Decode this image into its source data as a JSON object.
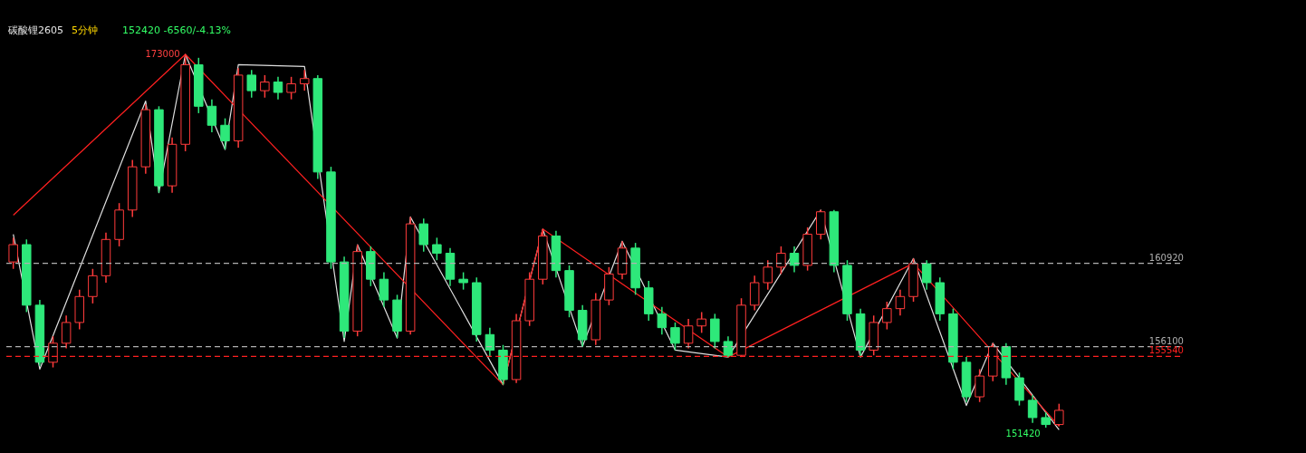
{
  "chart_data": {
    "type": "candlestick",
    "title": "碳酸锂2605",
    "subtitle": "5分钟",
    "tick_labels": false,
    "categories": [
      null,
      null,
      null,
      null,
      null,
      null,
      null,
      null,
      null,
      null,
      null,
      null,
      null,
      null,
      null,
      null,
      null,
      null,
      null,
      null,
      null,
      null,
      null,
      null,
      null,
      null,
      null,
      null,
      null,
      null,
      null,
      null,
      null,
      null,
      null,
      null,
      null,
      null,
      null,
      null,
      null,
      null,
      null,
      null,
      null,
      null,
      null,
      null,
      null,
      null,
      null,
      null,
      null,
      null,
      null,
      null,
      null,
      null,
      null,
      null,
      null,
      null,
      null,
      null,
      null,
      null,
      null,
      null,
      null,
      null,
      null,
      null,
      null,
      null,
      null,
      null,
      null,
      null,
      null,
      null
    ],
    "ohlc": [
      [
        161000,
        162400,
        160600,
        162000
      ],
      [
        162000,
        162300,
        158100,
        158500
      ],
      [
        158500,
        158800,
        155000,
        155200
      ],
      [
        155200,
        156700,
        154900,
        156300
      ],
      [
        156300,
        157900,
        156000,
        157500
      ],
      [
        157500,
        159400,
        157100,
        159000
      ],
      [
        159000,
        160600,
        158600,
        160200
      ],
      [
        160200,
        162700,
        159800,
        162300
      ],
      [
        162300,
        164400,
        161900,
        164000
      ],
      [
        164000,
        166900,
        163600,
        166500
      ],
      [
        166500,
        170100,
        166100,
        169800
      ],
      [
        169800,
        170000,
        165000,
        165400
      ],
      [
        165400,
        168200,
        165000,
        167800
      ],
      [
        167800,
        173000,
        167400,
        172400
      ],
      [
        172400,
        172800,
        169600,
        170000
      ],
      [
        170000,
        170400,
        168500,
        168900
      ],
      [
        168900,
        169300,
        167500,
        168000
      ],
      [
        168000,
        172200,
        167600,
        171800
      ],
      [
        171800,
        172100,
        170500,
        170900
      ],
      [
        170900,
        171800,
        170500,
        171400
      ],
      [
        171400,
        171700,
        170400,
        170800
      ],
      [
        170800,
        171700,
        170400,
        171300
      ],
      [
        171300,
        172100,
        170900,
        171600
      ],
      [
        171600,
        171800,
        165800,
        166200
      ],
      [
        166200,
        166500,
        160600,
        161000
      ],
      [
        161000,
        161300,
        156600,
        157000
      ],
      [
        157000,
        162000,
        156700,
        161600
      ],
      [
        161600,
        161900,
        159600,
        160000
      ],
      [
        160000,
        160400,
        158400,
        158800
      ],
      [
        158800,
        159100,
        156600,
        157000
      ],
      [
        157000,
        163600,
        156800,
        163200
      ],
      [
        163200,
        163500,
        161600,
        162000
      ],
      [
        162000,
        162400,
        161100,
        161500
      ],
      [
        161500,
        161800,
        159600,
        160000
      ],
      [
        160000,
        160400,
        159400,
        159800
      ],
      [
        159800,
        160100,
        156400,
        156800
      ],
      [
        156800,
        157200,
        155500,
        155900
      ],
      [
        155900,
        156200,
        153900,
        154200
      ],
      [
        154200,
        158000,
        154000,
        157600
      ],
      [
        157600,
        160400,
        157300,
        160000
      ],
      [
        160000,
        162900,
        159700,
        162500
      ],
      [
        162500,
        162800,
        160100,
        160500
      ],
      [
        160500,
        160800,
        157800,
        158200
      ],
      [
        158200,
        158500,
        156100,
        156500
      ],
      [
        156500,
        159200,
        156200,
        158800
      ],
      [
        158800,
        160700,
        158500,
        160300
      ],
      [
        160300,
        162200,
        160000,
        161800
      ],
      [
        161800,
        162100,
        159100,
        159500
      ],
      [
        159500,
        159900,
        157600,
        158000
      ],
      [
        158000,
        158400,
        156800,
        157200
      ],
      [
        157200,
        157500,
        155900,
        156300
      ],
      [
        156300,
        157700,
        156000,
        157300
      ],
      [
        157300,
        158100,
        156900,
        157700
      ],
      [
        157700,
        158000,
        156000,
        156400
      ],
      [
        156400,
        156700,
        155500,
        155600
      ],
      [
        155600,
        158900,
        155500,
        158500
      ],
      [
        158500,
        160200,
        158200,
        159800
      ],
      [
        159800,
        161100,
        159400,
        160700
      ],
      [
        160700,
        161900,
        160300,
        161500
      ],
      [
        161500,
        161900,
        160400,
        160800
      ],
      [
        160800,
        163000,
        160500,
        162600
      ],
      [
        162600,
        164000,
        162300,
        163900
      ],
      [
        163900,
        164000,
        160400,
        160800
      ],
      [
        160800,
        161100,
        157600,
        158000
      ],
      [
        158000,
        158300,
        155500,
        155900
      ],
      [
        155900,
        157900,
        155600,
        157500
      ],
      [
        157500,
        158700,
        157100,
        158300
      ],
      [
        158300,
        159400,
        157900,
        159000
      ],
      [
        159000,
        161200,
        158700,
        160900
      ],
      [
        160900,
        161100,
        159400,
        159800
      ],
      [
        159800,
        160100,
        157600,
        158000
      ],
      [
        158000,
        158300,
        154800,
        155200
      ],
      [
        155200,
        155500,
        152900,
        153200
      ],
      [
        153200,
        154800,
        152900,
        154400
      ],
      [
        154400,
        156300,
        154100,
        156100
      ],
      [
        156100,
        156300,
        153900,
        154300
      ],
      [
        154300,
        154600,
        152700,
        153000
      ],
      [
        153000,
        153300,
        151700,
        152000
      ],
      [
        152000,
        152300,
        151420,
        151600
      ],
      [
        151600,
        152800,
        151500,
        152420
      ]
    ],
    "series": [
      {
        "type": "line",
        "color": "#e0e0e0",
        "values": [
          162600,
          null,
          154800,
          null,
          null,
          null,
          null,
          null,
          null,
          null,
          170300,
          165000,
          null,
          173000,
          null,
          null,
          167500,
          172400,
          null,
          null,
          null,
          null,
          172300,
          null,
          null,
          156400,
          162000,
          null,
          null,
          156600,
          163600,
          null,
          null,
          null,
          null,
          null,
          null,
          153900,
          null,
          null,
          162900,
          null,
          null,
          156100,
          null,
          null,
          162200,
          null,
          null,
          null,
          155900,
          null,
          null,
          null,
          155500,
          null,
          null,
          null,
          null,
          null,
          null,
          164000,
          null,
          null,
          155500,
          null,
          null,
          null,
          161200,
          null,
          null,
          null,
          152700,
          null,
          156300,
          null,
          null,
          null,
          null,
          151300
        ]
      },
      {
        "type": "line",
        "color": "#ff2020",
        "values": [
          163700,
          null,
          null,
          null,
          null,
          null,
          null,
          null,
          null,
          null,
          null,
          null,
          null,
          173000,
          null,
          null,
          null,
          null,
          null,
          null,
          null,
          null,
          null,
          null,
          null,
          null,
          null,
          null,
          null,
          null,
          null,
          null,
          null,
          null,
          null,
          null,
          null,
          153900,
          null,
          null,
          162900,
          null,
          null,
          null,
          null,
          null,
          null,
          null,
          null,
          null,
          null,
          null,
          null,
          null,
          155500,
          null,
          null,
          null,
          null,
          null,
          null,
          null,
          null,
          null,
          null,
          null,
          null,
          null,
          160920,
          null,
          null,
          null,
          null,
          null,
          null,
          null,
          null,
          null,
          null,
          151500
        ]
      }
    ],
    "ref_lines": [
      {
        "axis": "y",
        "value": 160920,
        "label": "160920",
        "color": "#b0b0b0",
        "line_style": "dashed"
      },
      {
        "axis": "y",
        "value": 156100,
        "label": "156100",
        "color": "#b0b0b0",
        "line_style": "dashed"
      },
      {
        "axis": "y",
        "value": 155540,
        "label": "155540",
        "color": "#ff2020",
        "line_style": "dashed"
      }
    ],
    "annotations": [
      "152420  -6560/-4.13%",
      "173000",
      "151420"
    ]
  }
}
